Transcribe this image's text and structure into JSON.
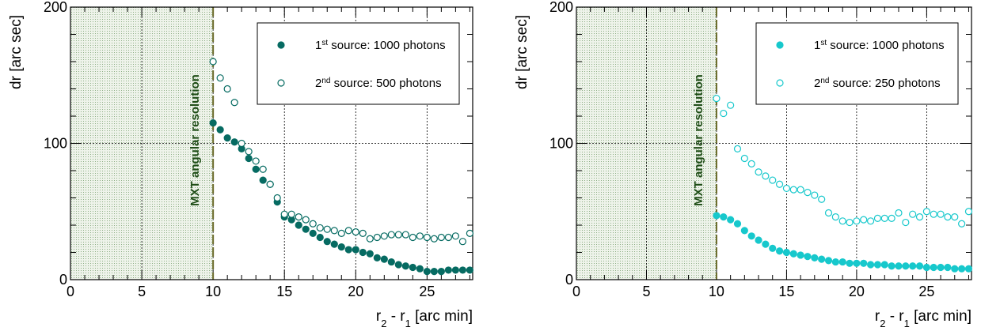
{
  "chart_data": [
    {
      "type": "scatter",
      "color": "#066b62",
      "xlabel": {
        "main": "r",
        "sub2": "2",
        "mid": " - r",
        "sub1": "1",
        "unit": " [arc min]"
      },
      "ylabel": "dr [arc sec]",
      "xlim": [
        0,
        28.2
      ],
      "ylim": [
        0,
        200
      ],
      "xticks": [
        "0",
        "5",
        "10",
        "15",
        "20",
        "25"
      ],
      "yticks": [
        "0",
        "100",
        "200"
      ],
      "grid": true,
      "shaded_region": [
        0,
        10
      ],
      "vline": {
        "x": 10,
        "label": "MXT angular resolution"
      },
      "legend_position": "top-right",
      "series": [
        {
          "name": "1st source: 1000 photons",
          "legend": {
            "pre": "1",
            "sup": "st",
            "post": " source: 1000 photons"
          },
          "marker": "filled-circle",
          "x": [
            10,
            10.5,
            11,
            11.5,
            12,
            12.5,
            13,
            13.5,
            14,
            14.5,
            15,
            15.5,
            16,
            16.5,
            17,
            17.5,
            18,
            18.5,
            19,
            19.5,
            20,
            20.5,
            21,
            21.5,
            22,
            22.5,
            23,
            23.5,
            24,
            24.5,
            25,
            25.5,
            26,
            26.5,
            27,
            27.5,
            28
          ],
          "y": [
            115,
            110,
            104,
            101,
            96,
            89,
            81,
            73,
            70,
            57,
            46,
            44,
            40,
            37,
            34,
            31,
            28,
            26,
            24,
            22,
            22,
            20,
            19,
            16,
            15,
            13,
            11,
            10,
            9,
            8,
            6,
            6,
            6,
            7,
            7,
            7,
            7
          ]
        },
        {
          "name": "2nd source: 500 photons",
          "legend": {
            "pre": "2",
            "sup": "nd",
            "post": " source: 500 photons"
          },
          "marker": "open-circle",
          "x": [
            10,
            10.5,
            11,
            11.5,
            12,
            12.5,
            13,
            13.5,
            14,
            14.5,
            15,
            15.5,
            16,
            16.5,
            17,
            17.5,
            18,
            18.5,
            19,
            19.5,
            20,
            20.5,
            21,
            21.5,
            22,
            22.5,
            23,
            23.5,
            24,
            24.5,
            25,
            25.5,
            26,
            26.5,
            27,
            27.5,
            28
          ],
          "y": [
            160,
            148,
            140,
            130,
            100,
            94,
            87,
            81,
            70,
            60,
            48,
            48,
            46,
            44,
            41,
            38,
            37,
            36,
            34,
            36,
            35,
            34,
            30,
            31,
            32,
            33,
            33,
            33,
            31,
            32,
            31,
            30,
            31,
            31,
            32,
            28,
            34
          ]
        }
      ]
    },
    {
      "type": "scatter",
      "color": "#17c8cc",
      "xlabel": {
        "main": "r",
        "sub2": "2",
        "mid": " - r",
        "sub1": "1",
        "unit": " [arc min]"
      },
      "ylabel": "dr [arc sec]",
      "xlim": [
        0,
        28.2
      ],
      "ylim": [
        0,
        200
      ],
      "xticks": [
        "0",
        "5",
        "10",
        "15",
        "20",
        "25"
      ],
      "yticks": [
        "0",
        "100",
        "200"
      ],
      "grid": true,
      "shaded_region": [
        0,
        10
      ],
      "vline": {
        "x": 10,
        "label": "MXT angular resolution"
      },
      "legend_position": "top-right",
      "series": [
        {
          "name": "1st source: 1000 photons",
          "legend": {
            "pre": "1",
            "sup": "st",
            "post": " source: 1000 photons"
          },
          "marker": "filled-circle",
          "x": [
            10,
            10.5,
            11,
            11.5,
            12,
            12.5,
            13,
            13.5,
            14,
            14.5,
            15,
            15.5,
            16,
            16.5,
            17,
            17.5,
            18,
            18.5,
            19,
            19.5,
            20,
            20.5,
            21,
            21.5,
            22,
            22.5,
            23,
            23.5,
            24,
            24.5,
            25,
            25.5,
            26,
            26.5,
            27,
            27.5,
            28
          ],
          "y": [
            47,
            46,
            44,
            41,
            36,
            32,
            29,
            26,
            23,
            21,
            20,
            19,
            18,
            17,
            16,
            15,
            14,
            13,
            13,
            12,
            12,
            12,
            11,
            11,
            11,
            10,
            10,
            10,
            10,
            10,
            9,
            9,
            9,
            9,
            8,
            8,
            8
          ]
        },
        {
          "name": "2nd source: 250 photons",
          "legend": {
            "pre": "2",
            "sup": "nd",
            "post": " source: 250 photons"
          },
          "marker": "open-circle",
          "x": [
            10,
            10.5,
            11,
            11.5,
            12,
            12.5,
            13,
            13.5,
            14,
            14.5,
            15,
            15.5,
            16,
            16.5,
            17,
            17.5,
            18,
            18.5,
            19,
            19.5,
            20,
            20.5,
            21,
            21.5,
            22,
            22.5,
            23,
            23.5,
            24,
            24.5,
            25,
            25.5,
            26,
            26.5,
            27,
            27.5,
            28
          ],
          "y": [
            133,
            122,
            128,
            96,
            89,
            85,
            79,
            76,
            73,
            70,
            67,
            66,
            66,
            64,
            62,
            59,
            49,
            46,
            43,
            42,
            43,
            44,
            43,
            45,
            45,
            45,
            49,
            42,
            48,
            46,
            50,
            48,
            48,
            46,
            46,
            41,
            50
          ]
        }
      ]
    }
  ]
}
